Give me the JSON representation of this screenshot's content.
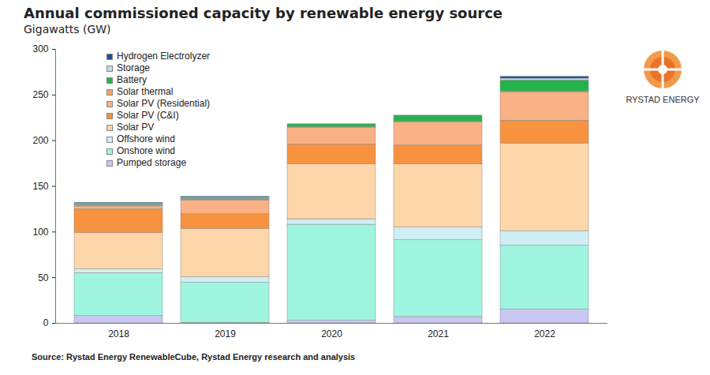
{
  "chart_data": {
    "type": "bar",
    "title": "Annual commissioned capacity by renewable energy source",
    "subtitle": "Gigawatts (GW)",
    "source": "Source: Rystad Energy RenewableCube, Rystad Energy research and analysis",
    "logo": "RYSTAD ENERGY",
    "stacked": true,
    "grid": false,
    "legend": "top-left",
    "categories": [
      "2018",
      "2019",
      "2020",
      "2021",
      "2022"
    ],
    "series": [
      {
        "name": "Pumped storage",
        "color": "#c9c6f2",
        "values": [
          8,
          0.5,
          3,
          7,
          15
        ]
      },
      {
        "name": "Onshore wind",
        "color": "#9ff5df",
        "values": [
          47,
          44,
          105,
          84,
          70
        ]
      },
      {
        "name": "Offshore wind",
        "color": "#cfeef6",
        "values": [
          4,
          6,
          6,
          14,
          16
        ]
      },
      {
        "name": "Solar PV",
        "color": "#fdd6aa",
        "values": [
          40,
          53,
          60,
          69,
          96
        ]
      },
      {
        "name": "Solar PV (C&I)",
        "color": "#f7923f",
        "values": [
          26,
          16,
          22,
          21,
          25
        ]
      },
      {
        "name": "Solar PV (Residential)",
        "color": "#fbb186",
        "values": [
          3,
          15,
          18,
          25,
          31
        ]
      },
      {
        "name": "Solar thermal",
        "color": "#f5a060",
        "values": [
          1,
          1,
          1,
          1,
          1
        ]
      },
      {
        "name": "Battery",
        "color": "#24b34b",
        "values": [
          1,
          1,
          3,
          6,
          12
        ]
      },
      {
        "name": "Storage",
        "color": "#c5d8ee",
        "values": [
          1,
          1,
          0,
          0,
          2
        ]
      },
      {
        "name": "Hydrogen Electrolyzer",
        "color": "#1f4f9e",
        "values": [
          1,
          1,
          0,
          0.5,
          2
        ]
      }
    ],
    "ylim": [
      0,
      300
    ],
    "yticks": [
      0,
      50,
      100,
      150,
      200,
      250,
      300
    ]
  }
}
